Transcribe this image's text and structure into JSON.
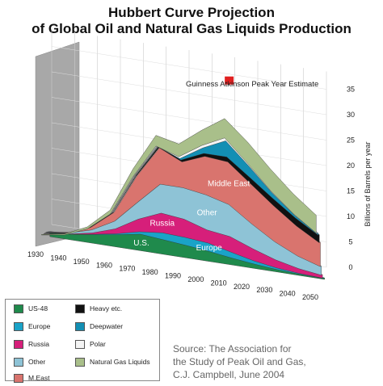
{
  "title": {
    "line1": "Hubbert Curve Projection",
    "line2": "of Global Oil and Natural Gas Liquids Production"
  },
  "annotation": "Guinness Atkinson Peak Year Estimate",
  "source": {
    "line1": "Source: The Association for",
    "line2": "the Study of Peak Oil and Gas,",
    "line3": "C.J. Campbell, June 2004"
  },
  "legend": [
    {
      "label": "US-48",
      "color": "#1f8a4c"
    },
    {
      "label": "Heavy etc.",
      "color": "#111111"
    },
    {
      "label": "Europe",
      "color": "#1aa3c8"
    },
    {
      "label": "Deepwater",
      "color": "#138fb4"
    },
    {
      "label": "Russia",
      "color": "#d61f7a"
    },
    {
      "label": "Polar",
      "color": "#f4f4f4"
    },
    {
      "label": "Other",
      "color": "#8ec3d6"
    },
    {
      "label": "Natural Gas Liquids",
      "color": "#a9bf8a"
    },
    {
      "label": "M.East",
      "color": "#d9746e"
    }
  ],
  "chart_data": {
    "type": "area",
    "ylabel": "Billions of Barrels per year",
    "x": [
      1930,
      1940,
      1950,
      1960,
      1970,
      1980,
      1990,
      2000,
      2010,
      2020,
      2030,
      2040,
      2050
    ],
    "x_tick_labels": [
      "1930",
      "1940",
      "1950",
      "1960",
      "1970",
      "1980",
      "1990",
      "2000",
      "2010",
      "2020",
      "2030",
      "2040",
      "2050"
    ],
    "y_tick_labels": [
      "0",
      "5",
      "10",
      "15",
      "20",
      "25",
      "30",
      "35"
    ],
    "ylim": [
      0,
      35
    ],
    "peak_marker": {
      "x": 2007,
      "y": 31
    },
    "series": [
      {
        "name": "US-48",
        "color": "#1f8a4c",
        "label": "U.S.",
        "values": [
          1.0,
          1.3,
          1.9,
          2.6,
          3.4,
          3.0,
          2.6,
          2.1,
          1.5,
          1.0,
          0.6,
          0.4,
          0.3
        ]
      },
      {
        "name": "Europe",
        "color": "#1aa3c8",
        "label": "Europe",
        "values": [
          0.1,
          0.1,
          0.2,
          0.3,
          0.6,
          1.5,
          1.7,
          1.8,
          1.3,
          0.8,
          0.5,
          0.3,
          0.2
        ]
      },
      {
        "name": "Russia",
        "color": "#d61f7a",
        "label": "Russia",
        "values": [
          0.1,
          0.2,
          0.4,
          1.1,
          2.6,
          4.0,
          3.7,
          2.7,
          3.2,
          2.5,
          1.7,
          1.1,
          0.7
        ]
      },
      {
        "name": "Other",
        "color": "#8ec3d6",
        "label": "Other",
        "values": [
          0.1,
          0.3,
          0.7,
          1.6,
          3.4,
          5.8,
          6.3,
          7.0,
          6.4,
          5.0,
          3.7,
          2.6,
          1.8
        ]
      },
      {
        "name": "M.East",
        "color": "#d9746e",
        "label": "Middle East",
        "values": [
          0.0,
          0.1,
          0.6,
          1.8,
          5.3,
          7.3,
          5.2,
          7.7,
          8.5,
          8.0,
          7.2,
          6.0,
          4.8
        ]
      },
      {
        "name": "Heavy etc.",
        "color": "#111111",
        "values": [
          0.0,
          0.0,
          0.1,
          0.1,
          0.2,
          0.4,
          0.5,
          0.7,
          1.1,
          1.4,
          1.6,
          1.7,
          1.6
        ]
      },
      {
        "name": "Deepwater",
        "color": "#138fb4",
        "values": [
          0.0,
          0.0,
          0.0,
          0.0,
          0.0,
          0.1,
          0.4,
          1.2,
          3.3,
          2.4,
          1.3,
          0.7,
          0.4
        ]
      },
      {
        "name": "Polar",
        "color": "#f4f4f4",
        "values": [
          0.0,
          0.0,
          0.0,
          0.0,
          0.1,
          0.2,
          0.5,
          0.6,
          0.7,
          0.6,
          0.5,
          0.4,
          0.3
        ]
      },
      {
        "name": "Natural Gas Liquids",
        "color": "#a9bf8a",
        "values": [
          0.1,
          0.2,
          0.4,
          0.8,
          1.5,
          2.1,
          2.5,
          3.0,
          3.8,
          4.2,
          4.2,
          3.9,
          3.5
        ]
      }
    ]
  }
}
